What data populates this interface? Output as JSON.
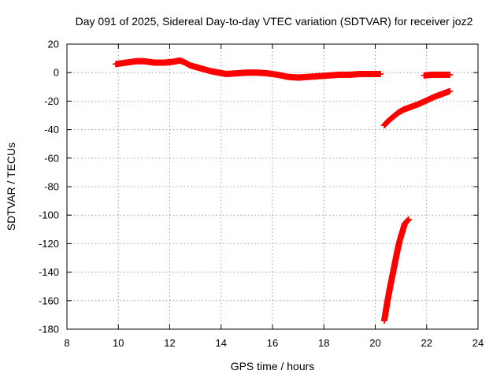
{
  "chart_data": {
    "type": "scatter",
    "title": "Day 091 of 2025, Sidereal Day-to-day VTEC variation (SDTVAR) for receiver joz2",
    "xlabel": "GPS time / hours",
    "ylabel": "SDTVAR / TECUs",
    "xlim": [
      8,
      24
    ],
    "ylim": [
      -180,
      20
    ],
    "xticks": [
      8,
      10,
      12,
      14,
      16,
      18,
      20,
      22,
      24
    ],
    "yticks": [
      20,
      0,
      -20,
      -40,
      -60,
      -80,
      -100,
      -120,
      -140,
      -160,
      -180
    ],
    "grid": true,
    "marker": "plus",
    "color": "#ff0000",
    "series": [
      {
        "points": [
          [
            9.9,
            6
          ],
          [
            10.3,
            7
          ],
          [
            10.7,
            8
          ],
          [
            11.0,
            8
          ],
          [
            11.4,
            7
          ],
          [
            11.8,
            7
          ],
          [
            12.1,
            7.5
          ],
          [
            12.4,
            8.5
          ],
          [
            12.6,
            7
          ],
          [
            12.8,
            5
          ],
          [
            13.0,
            4
          ],
          [
            13.3,
            2.5
          ],
          [
            13.6,
            1
          ],
          [
            13.9,
            0
          ],
          [
            14.2,
            -1
          ],
          [
            14.6,
            -0.5
          ],
          [
            15.0,
            0
          ],
          [
            15.4,
            0
          ],
          [
            15.8,
            -0.5
          ],
          [
            16.2,
            -1.5
          ],
          [
            16.6,
            -3
          ],
          [
            17.0,
            -3.5
          ],
          [
            17.4,
            -3
          ],
          [
            17.8,
            -2.5
          ],
          [
            18.2,
            -2
          ],
          [
            18.6,
            -1.5
          ],
          [
            19.0,
            -1.5
          ],
          [
            19.4,
            -1
          ],
          [
            19.8,
            -1
          ],
          [
            20.2,
            -1
          ]
        ]
      },
      {
        "points": [
          [
            20.35,
            -37
          ],
          [
            20.5,
            -34
          ],
          [
            20.7,
            -31
          ],
          [
            20.9,
            -28
          ],
          [
            21.1,
            -26
          ],
          [
            21.4,
            -24
          ],
          [
            21.7,
            -22
          ],
          [
            22.0,
            -19.5
          ],
          [
            22.3,
            -17
          ],
          [
            22.6,
            -15
          ],
          [
            22.9,
            -13
          ]
        ]
      },
      {
        "points": [
          [
            21.9,
            -2
          ],
          [
            22.2,
            -1.5
          ],
          [
            22.5,
            -1.5
          ],
          [
            22.9,
            -1.5
          ]
        ]
      },
      {
        "points": [
          [
            20.35,
            -174
          ],
          [
            20.45,
            -163
          ],
          [
            20.55,
            -153
          ],
          [
            20.65,
            -144
          ],
          [
            20.75,
            -135
          ],
          [
            20.85,
            -126
          ],
          [
            20.95,
            -118
          ],
          [
            21.05,
            -112
          ],
          [
            21.15,
            -106
          ],
          [
            21.3,
            -103
          ]
        ]
      }
    ]
  }
}
